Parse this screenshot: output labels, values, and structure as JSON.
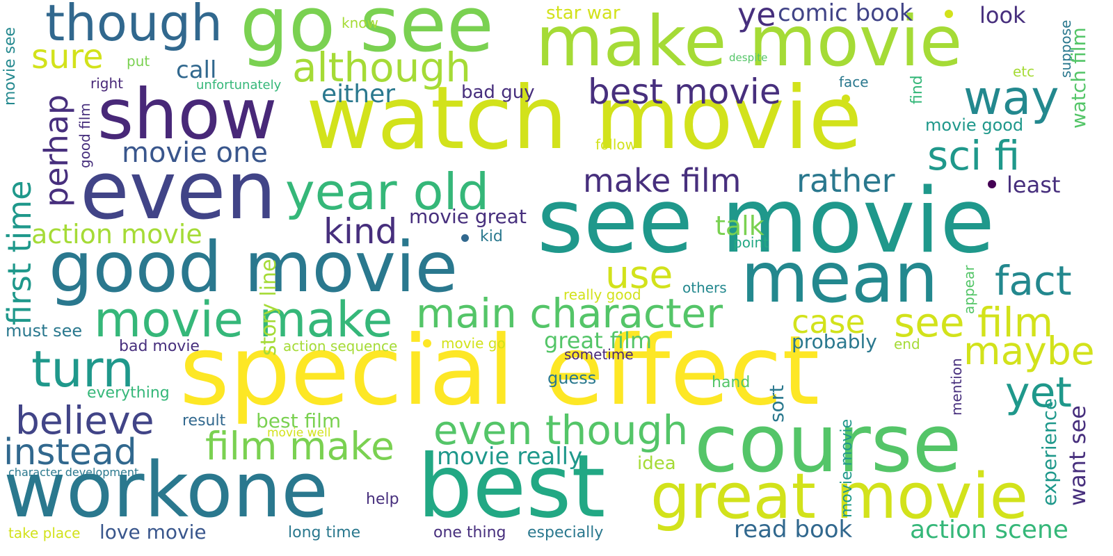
{
  "words": {
    "watch_movie": "watch movie",
    "special_effect": "special effect",
    "see_movie": "see movie",
    "make_movie": "make movie",
    "go_see": "go see",
    "show": "show",
    "even": "even",
    "good_movie": "good movie",
    "workone": "workone",
    "best": "best",
    "course": "course",
    "mean": "mean",
    "great_movie": "great movie",
    "movie_make": "movie make",
    "year_old": "year old",
    "though": "though",
    "although": "although",
    "turn": "turn",
    "instead": "instead",
    "believe": "believe",
    "main_character": "main character",
    "even_though": "even though",
    "film_make": "film make",
    "way": "way",
    "fact": "fact",
    "sci_fi": "sci fi",
    "see_film": "see film",
    "maybe": "maybe",
    "yet": "yet",
    "use": "use",
    "best_movie": "best movie",
    "make_film": "make film",
    "rather": "rather",
    "kind": "kind",
    "movie_one": "movie one",
    "first_time": "first time",
    "perhap": "perhap",
    "sure": "sure",
    "ye": "ye",
    "comic_book": "comic book",
    "look": "look",
    "either": "either",
    "call": "call",
    "action_movie": "action movie",
    "talk": "talk",
    "case": "case",
    "great_film": "great film",
    "movie_great": "movie great",
    "movie_really": "movie really",
    "story_line": "story line",
    "least": "least",
    "read_book": "read book",
    "action_scene": "action scene",
    "love_movie": "love movie",
    "want_see": "want see",
    "probably": "probably",
    "best_film": "best film",
    "sort": "sort",
    "experience": "experience",
    "watch_film": "watch film",
    "movie_good": "movie good",
    "star_war": "star war",
    "bad_guy": "bad guy",
    "idea": "idea",
    "guess": "guess",
    "must_see": "must see",
    "bad_movie": "bad movie",
    "action_sequence": "action sequence",
    "movie_go": "movie go",
    "sometime": "sometime",
    "hand": "hand",
    "end": "end",
    "mention": "mention",
    "movie_movie": "movie movie",
    "everything": "everything",
    "result": "result",
    "movie_well": "movie well",
    "character_development": "character development",
    "help": "help",
    "take_place": "take place",
    "long_time": "long time",
    "one_thing": "one thing",
    "especially": "especially",
    "know": "know",
    "put": "put",
    "right": "right",
    "unfortunately": "unfortunately",
    "despite": "despite",
    "etc": "etc",
    "face": "face",
    "find": "find",
    "suppose": "suppose",
    "follow": "follow",
    "good_film": "good film",
    "movie_see": "movie see",
    "kid": "kid",
    "point": "point",
    "others": "others",
    "really_good": "really good",
    "appear": "appear"
  },
  "colors": {
    "c1": "#fde725",
    "c2": "#d2e21b",
    "c3": "#a5db36",
    "c4": "#7ad151",
    "c5": "#54c568",
    "c6": "#35b779",
    "c7": "#22a884",
    "c8": "#1f988b",
    "c9": "#23888e",
    "c10": "#2a788e",
    "c11": "#31688e",
    "c12": "#39568c",
    "c13": "#414487",
    "c14": "#472f7d",
    "c15": "#482878",
    "c16": "#440154"
  }
}
